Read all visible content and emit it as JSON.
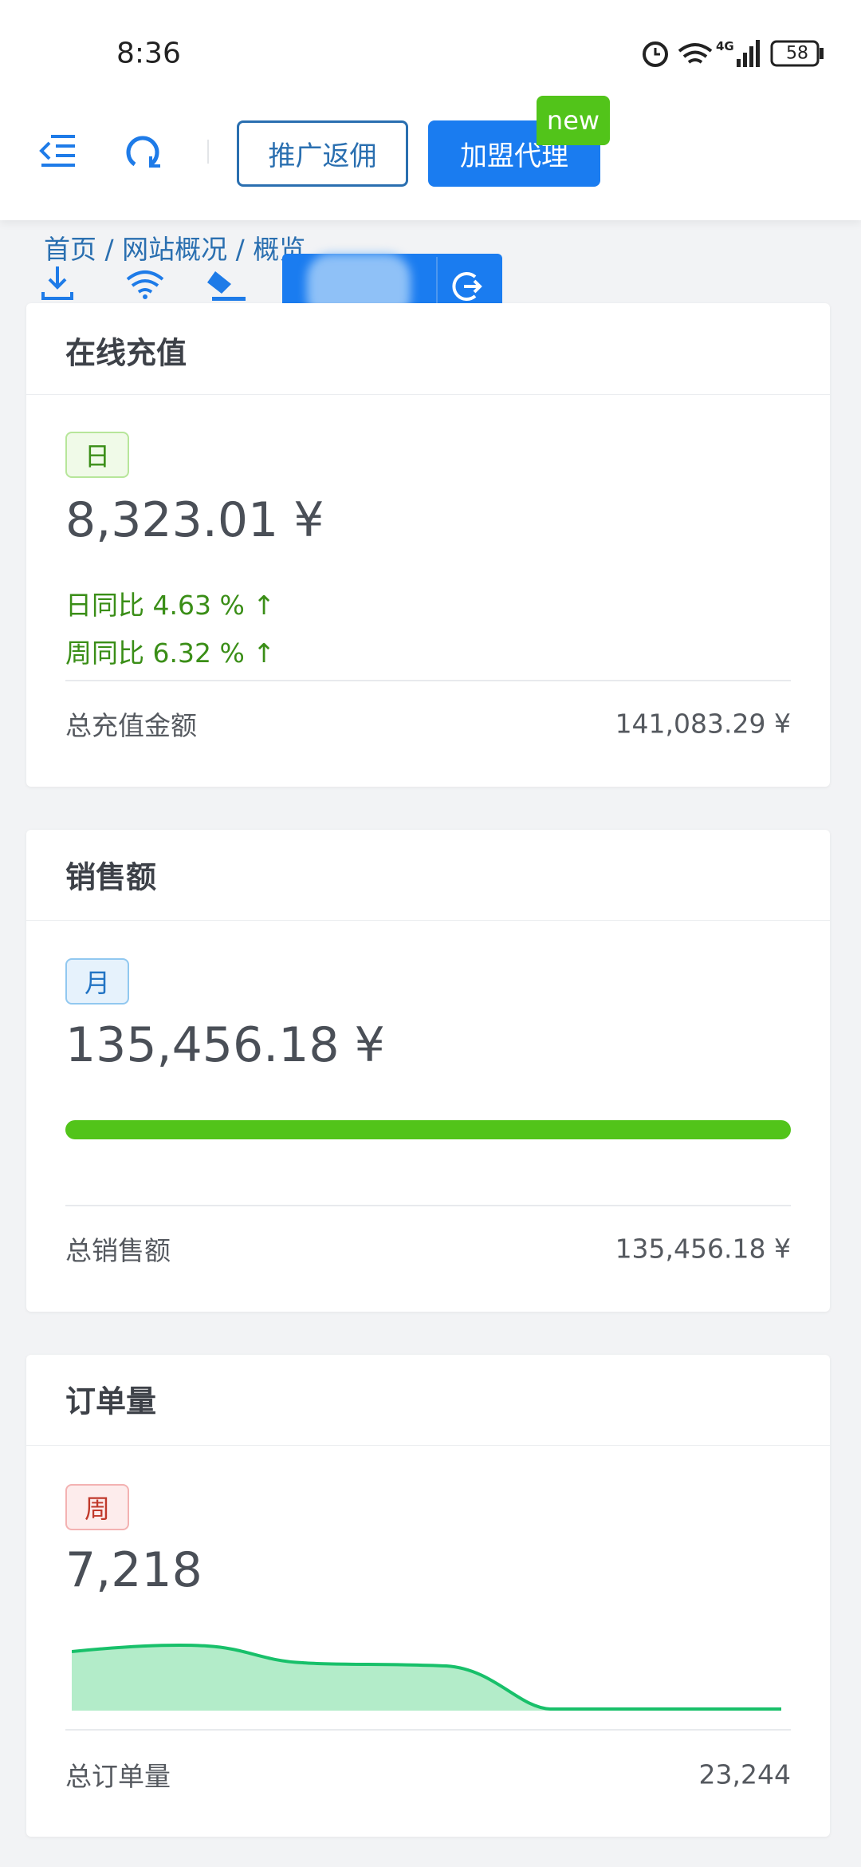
{
  "status_bar": {
    "time": "8:36",
    "network": "4G",
    "battery": "58"
  },
  "header": {
    "buttons": [
      "推广返佣",
      "加盟代理"
    ],
    "badge": "new"
  },
  "breadcrumb": {
    "items": [
      "首页",
      "网站概况",
      "概览"
    ],
    "separator": "/"
  },
  "cards": [
    {
      "title": "在线充值",
      "tag": "日",
      "value": "8,323.01 ¥",
      "comparisons": [
        "日同比 4.63 % ↑",
        "周同比 6.32 % ↑"
      ],
      "footer_label": "总充值金额",
      "footer_value": "141,083.29 ¥"
    },
    {
      "title": "销售额",
      "tag": "月",
      "value": "135,456.18 ¥",
      "footer_label": "总销售额",
      "footer_value": "135,456.18 ¥"
    },
    {
      "title": "订单量",
      "tag": "周",
      "value": "7,218",
      "footer_label": "总订单量",
      "footer_value": "23,244"
    }
  ]
}
